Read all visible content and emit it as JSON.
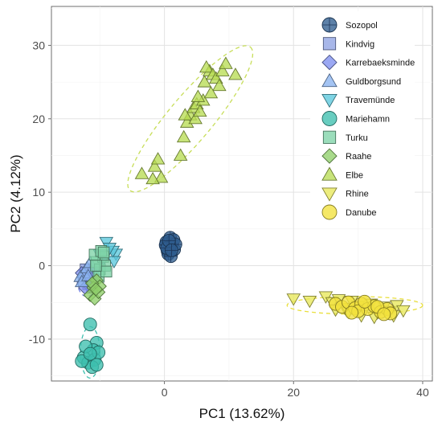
{
  "chart_data": {
    "type": "scatter",
    "xlabel": "PC1 (13.62%)",
    "ylabel": "PC2 (4.12%)",
    "xlim": [
      -17.5,
      41.5
    ],
    "ylim": [
      -15.7,
      35.3
    ],
    "xticks": [
      0,
      20,
      40
    ],
    "yticks": [
      -10,
      0,
      10,
      20,
      30
    ],
    "xtick_labels": [
      "0",
      "20",
      "40"
    ],
    "ytick_labels": [
      "-10",
      "0",
      "10",
      "20",
      "30"
    ],
    "grid": true,
    "legend_position": "top-right",
    "series": [
      {
        "name": "Sozopol",
        "marker": "circle-cross",
        "color": "#2f5d8f",
        "points": [
          [
            0.3,
            3.2
          ],
          [
            0.8,
            2.5
          ],
          [
            1.2,
            3.0
          ],
          [
            0.5,
            2.0
          ],
          [
            1.5,
            2.2
          ],
          [
            0.2,
            2.8
          ],
          [
            0.9,
            3.8
          ],
          [
            1.4,
            3.5
          ],
          [
            0.6,
            1.6
          ],
          [
            1.0,
            1.3
          ],
          [
            0.4,
            2.4
          ],
          [
            1.7,
            2.9
          ],
          [
            0.7,
            3.4
          ],
          [
            1.1,
            2.1
          ]
        ]
      },
      {
        "name": "Kindvig",
        "marker": "square",
        "color": "#8fa3e3",
        "points": [
          [
            -11.5,
            -1.5
          ],
          [
            -11.8,
            -2.5
          ],
          [
            -12.2,
            -0.5
          ],
          [
            -11.0,
            -1.2
          ],
          [
            -12.5,
            -2.0
          ],
          [
            -11.2,
            -3.0
          ]
        ]
      },
      {
        "name": "Karrebaeksminde",
        "marker": "diamond",
        "color": "#7f8fef",
        "points": [
          [
            -12.0,
            -1.8
          ],
          [
            -11.6,
            -2.8
          ],
          [
            -12.8,
            -1.0
          ],
          [
            -11.3,
            -0.8
          ],
          [
            -12.3,
            -3.0
          ]
        ]
      },
      {
        "name": "Guldborgsund",
        "marker": "triangle-up",
        "color": "#8ab4f0",
        "points": [
          [
            -12.5,
            -1.0
          ],
          [
            -13.0,
            -1.5
          ],
          [
            -12.0,
            -0.3
          ],
          [
            -11.5,
            0.4
          ],
          [
            -12.8,
            -2.2
          ],
          [
            -11.8,
            -1.4
          ]
        ]
      },
      {
        "name": "Travemünde",
        "marker": "triangle-down",
        "color": "#5bc8dc",
        "points": [
          [
            -9.0,
            3.2
          ],
          [
            -7.5,
            1.6
          ],
          [
            -8.0,
            2.0
          ],
          [
            -9.5,
            0.8
          ],
          [
            -8.5,
            2.4
          ],
          [
            -10.0,
            1.5
          ],
          [
            -7.8,
            0.6
          ]
        ]
      },
      {
        "name": "Mariehamn",
        "marker": "circle",
        "color": "#3ebfae",
        "points": [
          [
            -11.5,
            -8.0
          ],
          [
            -10.5,
            -10.5
          ],
          [
            -11.0,
            -11.5
          ],
          [
            -12.5,
            -12.5
          ],
          [
            -11.8,
            -13.2
          ],
          [
            -10.8,
            -12.8
          ],
          [
            -12.2,
            -11.0
          ],
          [
            -11.2,
            -13.8
          ],
          [
            -10.2,
            -11.8
          ],
          [
            -12.8,
            -13.0
          ],
          [
            -11.5,
            -12.0
          ],
          [
            -10.5,
            -13.5
          ]
        ]
      },
      {
        "name": "Turku",
        "marker": "square",
        "color": "#7fd3a8",
        "points": [
          [
            -10.5,
            0.5
          ],
          [
            -9.5,
            1.2
          ],
          [
            -10.0,
            -0.5
          ],
          [
            -9.2,
            0.0
          ],
          [
            -10.8,
            1.5
          ],
          [
            -9.8,
            2.0
          ],
          [
            -10.2,
            -1.5
          ],
          [
            -9.0,
            -0.8
          ],
          [
            -10.6,
            0.0
          ],
          [
            -9.4,
            1.8
          ]
        ]
      },
      {
        "name": "Raahe",
        "marker": "diamond",
        "color": "#8fcf6a",
        "points": [
          [
            -10.5,
            -2.0
          ],
          [
            -11.0,
            -3.0
          ],
          [
            -10.0,
            -2.8
          ],
          [
            -11.5,
            -4.0
          ],
          [
            -10.8,
            -4.5
          ],
          [
            -10.2,
            -3.6
          ],
          [
            -11.2,
            -2.4
          ],
          [
            -10.6,
            -3.2
          ]
        ]
      },
      {
        "name": "Elbe",
        "marker": "triangle-up",
        "color": "#b9dc55",
        "points": [
          [
            -3.5,
            12.5
          ],
          [
            -1.5,
            13.5
          ],
          [
            -1.0,
            14.5
          ],
          [
            -0.5,
            12.0
          ],
          [
            -1.8,
            11.8
          ],
          [
            2.5,
            15.0
          ],
          [
            3.0,
            17.5
          ],
          [
            3.5,
            19.5
          ],
          [
            4.0,
            20.5
          ],
          [
            4.5,
            21.5
          ],
          [
            5.0,
            22.0
          ],
          [
            6.0,
            22.5
          ],
          [
            3.2,
            20.5
          ],
          [
            4.8,
            20.0
          ],
          [
            5.5,
            21.0
          ],
          [
            5.2,
            23.0
          ],
          [
            6.2,
            25.0
          ],
          [
            7.0,
            26.5
          ],
          [
            6.5,
            27.0
          ],
          [
            7.5,
            26.0
          ],
          [
            8.0,
            25.5
          ],
          [
            9.0,
            26.5
          ],
          [
            11.0,
            26.0
          ],
          [
            8.5,
            24.5
          ],
          [
            7.2,
            23.5
          ],
          [
            9.5,
            27.5
          ]
        ]
      },
      {
        "name": "Rhine",
        "marker": "triangle-down",
        "color": "#e8e85a",
        "points": [
          [
            20.0,
            -4.5
          ],
          [
            22.5,
            -4.8
          ],
          [
            25.0,
            -4.2
          ],
          [
            26.0,
            -5.0
          ],
          [
            27.0,
            -4.6
          ],
          [
            28.0,
            -5.8
          ],
          [
            29.0,
            -4.8
          ],
          [
            30.0,
            -5.5
          ],
          [
            31.0,
            -6.0
          ],
          [
            32.0,
            -5.2
          ],
          [
            33.0,
            -6.4
          ],
          [
            34.0,
            -5.6
          ],
          [
            35.0,
            -6.2
          ],
          [
            36.0,
            -5.4
          ],
          [
            37.0,
            -6.1
          ],
          [
            30.5,
            -6.8
          ],
          [
            28.5,
            -6.3
          ],
          [
            26.5,
            -6.0
          ],
          [
            32.5,
            -7.0
          ],
          [
            35.5,
            -6.8
          ]
        ]
      },
      {
        "name": "Danube",
        "marker": "circle",
        "color": "#f2e13c",
        "points": [
          [
            26.5,
            -5.2
          ],
          [
            27.5,
            -5.6
          ],
          [
            28.5,
            -5.0
          ],
          [
            29.5,
            -5.8
          ],
          [
            30.5,
            -5.2
          ],
          [
            31.5,
            -5.9
          ],
          [
            32.5,
            -5.5
          ],
          [
            33.5,
            -6.3
          ],
          [
            34.5,
            -5.9
          ],
          [
            30.0,
            -6.2
          ],
          [
            31.0,
            -4.9
          ],
          [
            33.0,
            -5.6
          ],
          [
            35.0,
            -6.5
          ],
          [
            29.0,
            -6.4
          ],
          [
            34.0,
            -6.6
          ]
        ]
      }
    ],
    "ellipses": [
      {
        "group": "Elbe",
        "center": [
          4.0,
          20.0
        ],
        "rx_data": 14.5,
        "ry_data": 3.0,
        "angle_deg": -50,
        "color": "#c8de5a"
      },
      {
        "group": "Danube",
        "center": [
          29.5,
          -5.4
        ],
        "rx_data": 10.5,
        "ry_data": 1.2,
        "angle_deg": 0,
        "color": "#e9df3c"
      },
      {
        "group": "Kindvig",
        "center": [
          -12.0,
          -2.0
        ],
        "rx_data": 1.5,
        "ry_data": 2.2,
        "angle_deg": 0,
        "color": "#6f7fe3"
      },
      {
        "group": "Mariehamn",
        "center": [
          -11.5,
          -11.8
        ],
        "rx_data": 1.5,
        "ry_data": 3.5,
        "angle_deg": 0,
        "color": "#3ebfae"
      }
    ]
  }
}
